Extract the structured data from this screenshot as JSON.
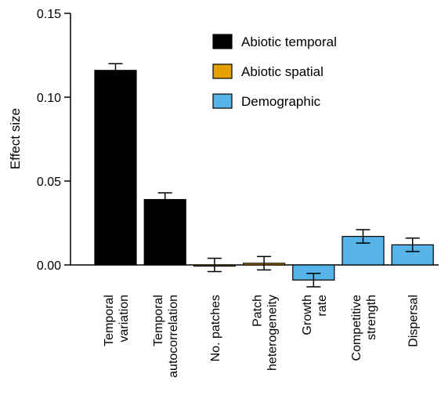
{
  "chart_data": {
    "type": "bar",
    "ylabel": "Effect size",
    "ylim": [
      0,
      0.15
    ],
    "yticks": [
      "0.00",
      "0.05",
      "0.10",
      "0.15"
    ],
    "ytick_values": [
      0,
      0.05,
      0.1,
      0.15
    ],
    "categories": [
      [
        "Temporal",
        "variation"
      ],
      [
        "Temporal",
        "autocorrelation"
      ],
      [
        "No. patches"
      ],
      [
        "Patch",
        "heterogeneity"
      ],
      [
        "Growth",
        "rate"
      ],
      [
        "Competitive",
        "strength"
      ],
      [
        "Dispersal"
      ]
    ],
    "values": [
      0.116,
      0.039,
      0.0,
      0.001,
      -0.009,
      0.017,
      0.012
    ],
    "errors": [
      0.004,
      0.004,
      0.004,
      0.004,
      0.004,
      0.004,
      0.004
    ],
    "groups": [
      "Abiotic temporal",
      "Abiotic temporal",
      "Abiotic spatial",
      "Abiotic spatial",
      "Demographic",
      "Demographic",
      "Demographic"
    ],
    "legend": [
      {
        "name": "Abiotic temporal",
        "color": "#000000"
      },
      {
        "name": "Abiotic spatial",
        "color": "#E69F00"
      },
      {
        "name": "Demographic",
        "color": "#56B4E9"
      }
    ],
    "legend_position": "top-right",
    "grid": false
  }
}
